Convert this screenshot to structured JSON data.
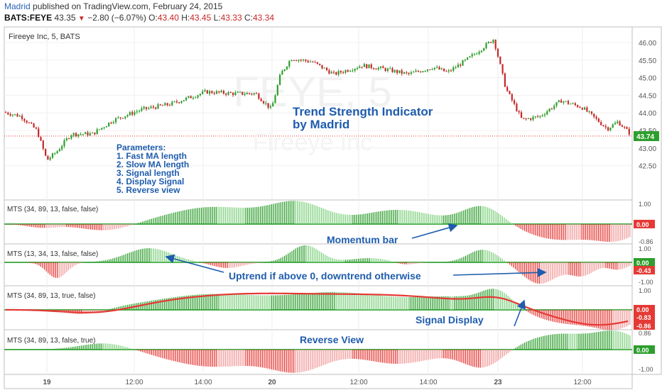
{
  "header": {
    "user": "Madrid",
    "published": " published on TradingView.com, February 24, 2015",
    "symbol": "BATS:FEYE",
    "price": "43.35",
    "change_arrow": "▼",
    "change": "−2.80 (−6.07%)",
    "o_label": "O:",
    "o": "43.40",
    "h_label": "H:",
    "h": "43.45",
    "l_label": "L:",
    "l": "43.33",
    "c_label": "C:",
    "c": "43.34"
  },
  "main_pane": {
    "legend": "Fireeye Inc, 5, BATS",
    "watermark_symbol": "FEYE, 5",
    "watermark_name": "Fireeye Inc",
    "price_ticks": [
      "46.00",
      "45.50",
      "45.00",
      "44.50",
      "44.00",
      "43.50",
      "43.00",
      "42.50"
    ],
    "last_price": "43.74",
    "title_line1": "Trend Strength Indicator",
    "title_line2": "by Madrid",
    "parameters": [
      "Parameters:",
      "1. Fast MA length",
      "2. Slow MA length",
      "3. Signal length",
      "4. Display Signal",
      "5. Reverse view"
    ]
  },
  "panes": [
    {
      "legend": "MTS (34, 89, 13, false, false)",
      "ticks": [
        "1.00",
        "-0.86"
      ],
      "value_tags": [
        "0.00"
      ],
      "annotation": "Momentum bar"
    },
    {
      "legend": "MTS (13, 34, 13, false, false)",
      "ticks": [
        "1.00",
        "-1.00"
      ],
      "value_tags": [
        "0.00",
        "-0.43"
      ],
      "annotation": "Uptrend if above 0, downtrend otherwise"
    },
    {
      "legend": "MTS (34, 89, 13, true, false)",
      "ticks": [
        "1.00"
      ],
      "value_tags": [
        "0.00",
        "-0.83",
        "-0.86"
      ],
      "annotation": "Signal Display"
    },
    {
      "legend": "MTS (34, 89, 13, false, true)",
      "ticks": [
        "0.86",
        "-1.00"
      ],
      "value_tags": [
        "0.00"
      ],
      "annotation": "Reverse View"
    }
  ],
  "time_axis": [
    "19",
    "12:00",
    "14:00",
    "20",
    "12:00",
    "14:00",
    "23",
    "12:00"
  ],
  "colors": {
    "up": "#2e9e2e",
    "down": "#e53935",
    "signal_line": "#e53935",
    "zero_line": "#4caf50",
    "accent": "#1e5cad"
  }
}
